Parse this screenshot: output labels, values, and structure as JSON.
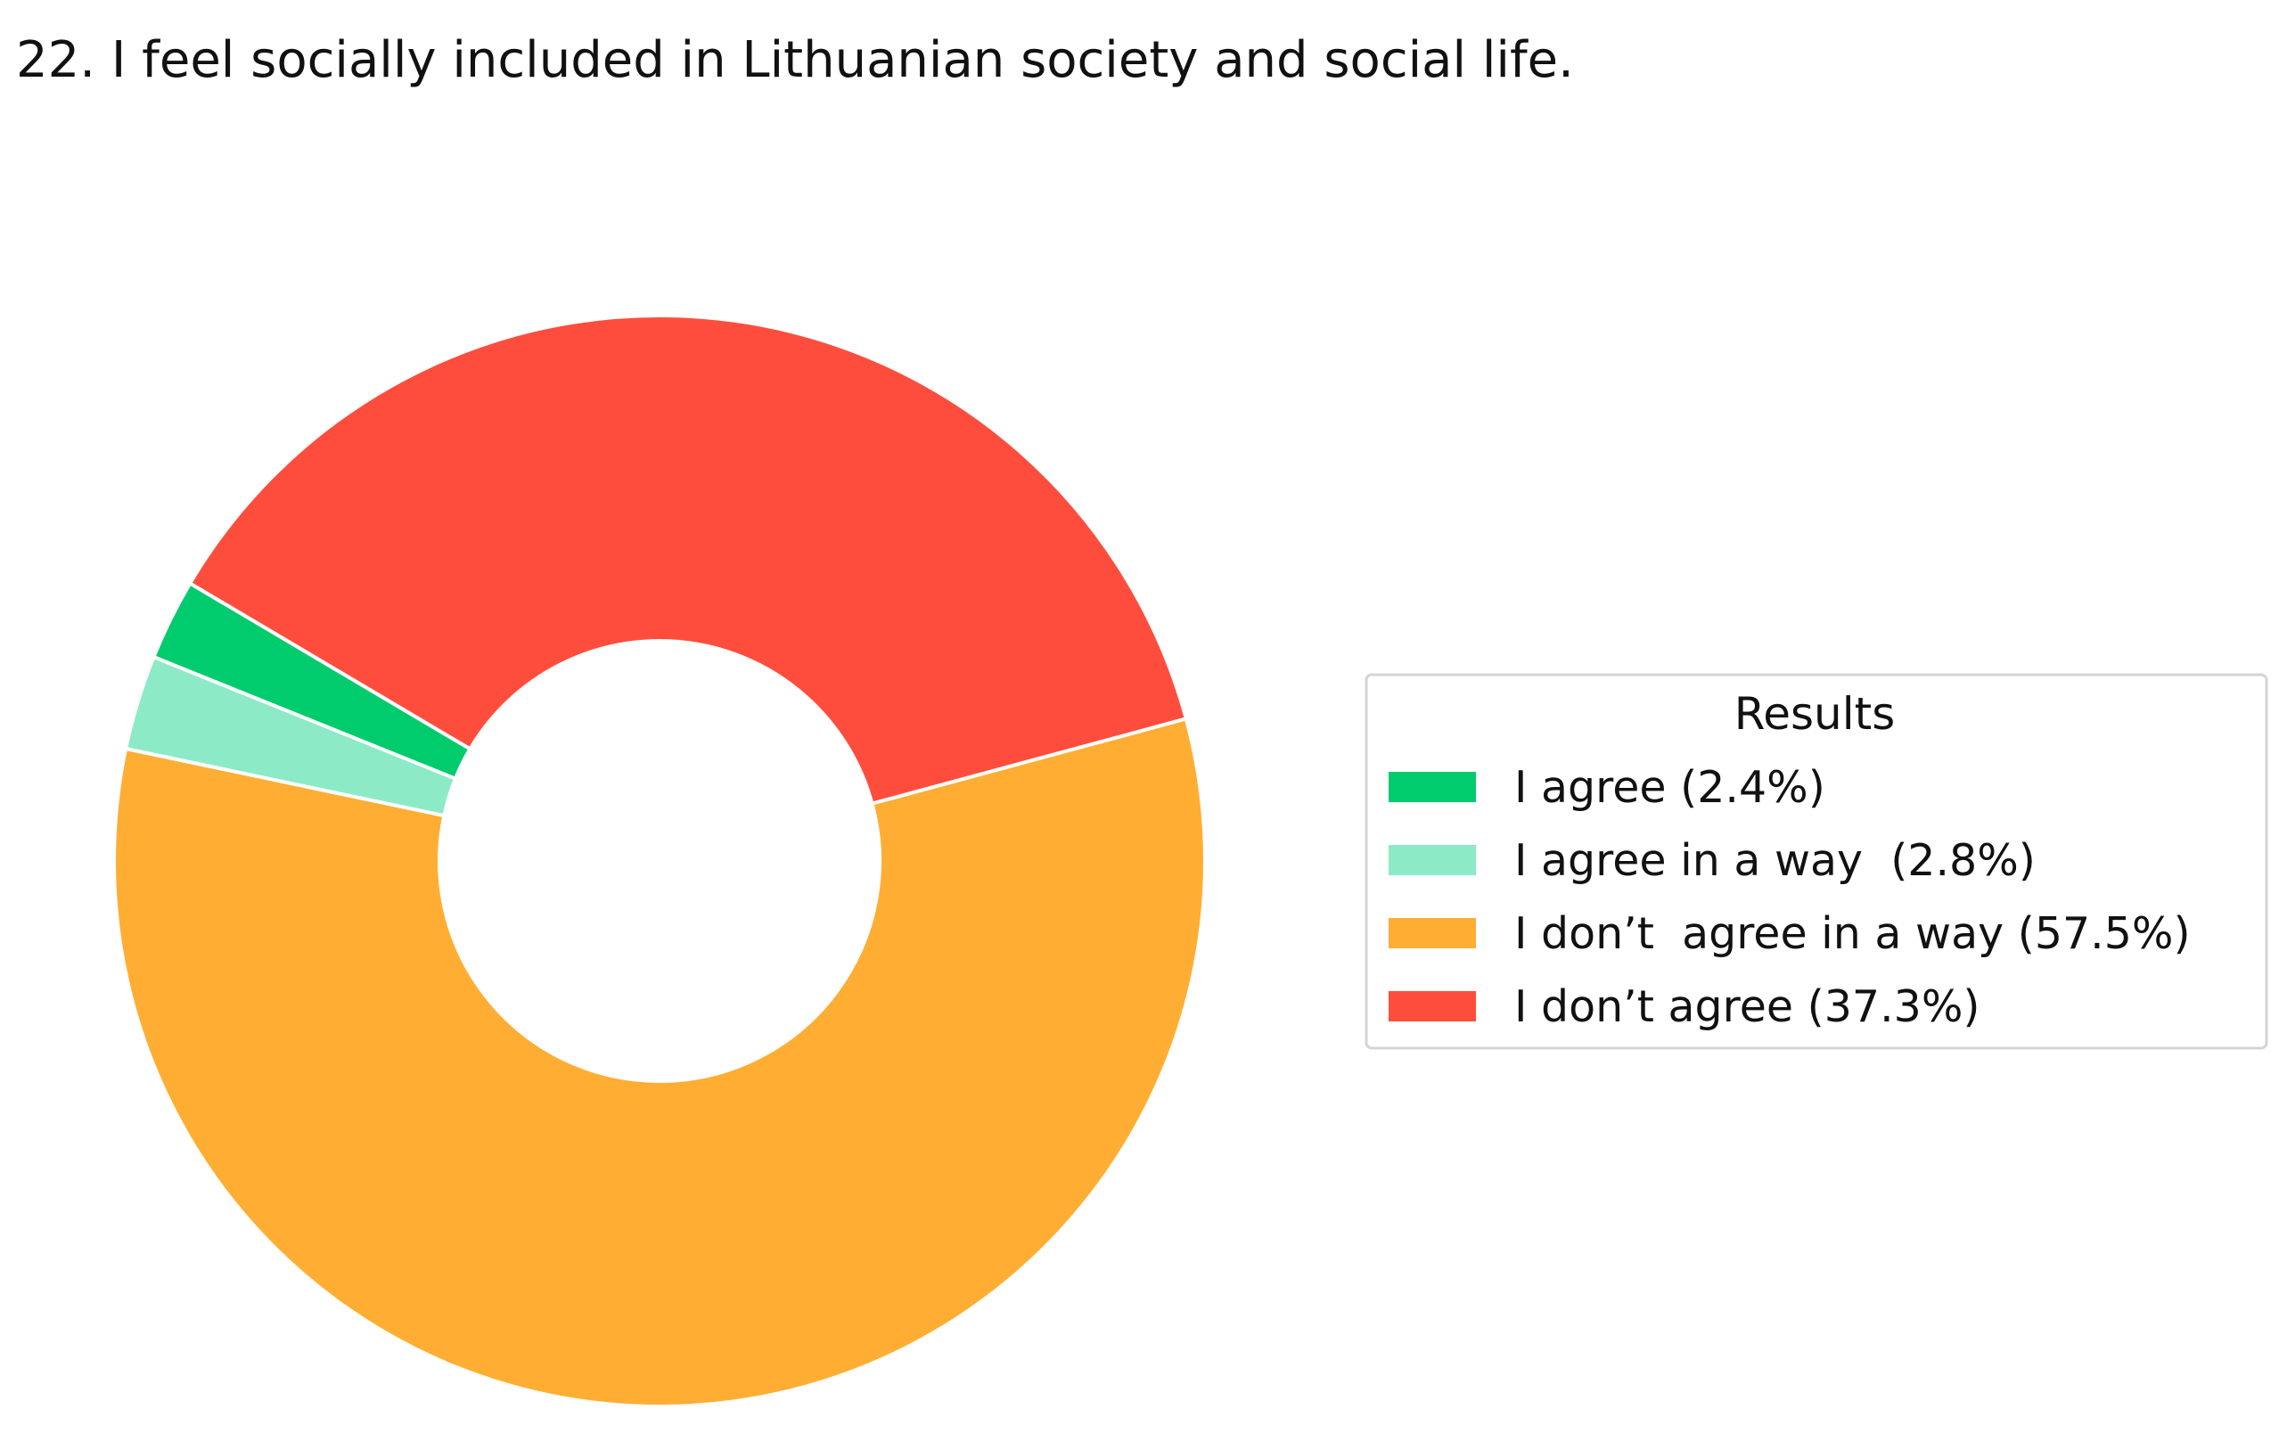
{
  "chart_data": {
    "type": "pie",
    "variant": "donut",
    "title": "22. I feel socially included in Lithuanian society and social life.",
    "legend_title": "Results",
    "legend_placement": "right",
    "start_angle_deg": 149.4,
    "direction": "counterclockwise",
    "slices": [
      {
        "label": "I agree (2.4%)",
        "value": 2.4,
        "color": "#00cc6e"
      },
      {
        "label": "I agree in a way  (2.8%)",
        "value": 2.8,
        "color": "#8cebc6"
      },
      {
        "label": "I don’t  agree in a way (57.5%)",
        "value": 57.5,
        "color": "#ffae33"
      },
      {
        "label": "I don’t agree (37.3%)",
        "value": 37.3,
        "color": "#ff4d3d"
      }
    ]
  }
}
